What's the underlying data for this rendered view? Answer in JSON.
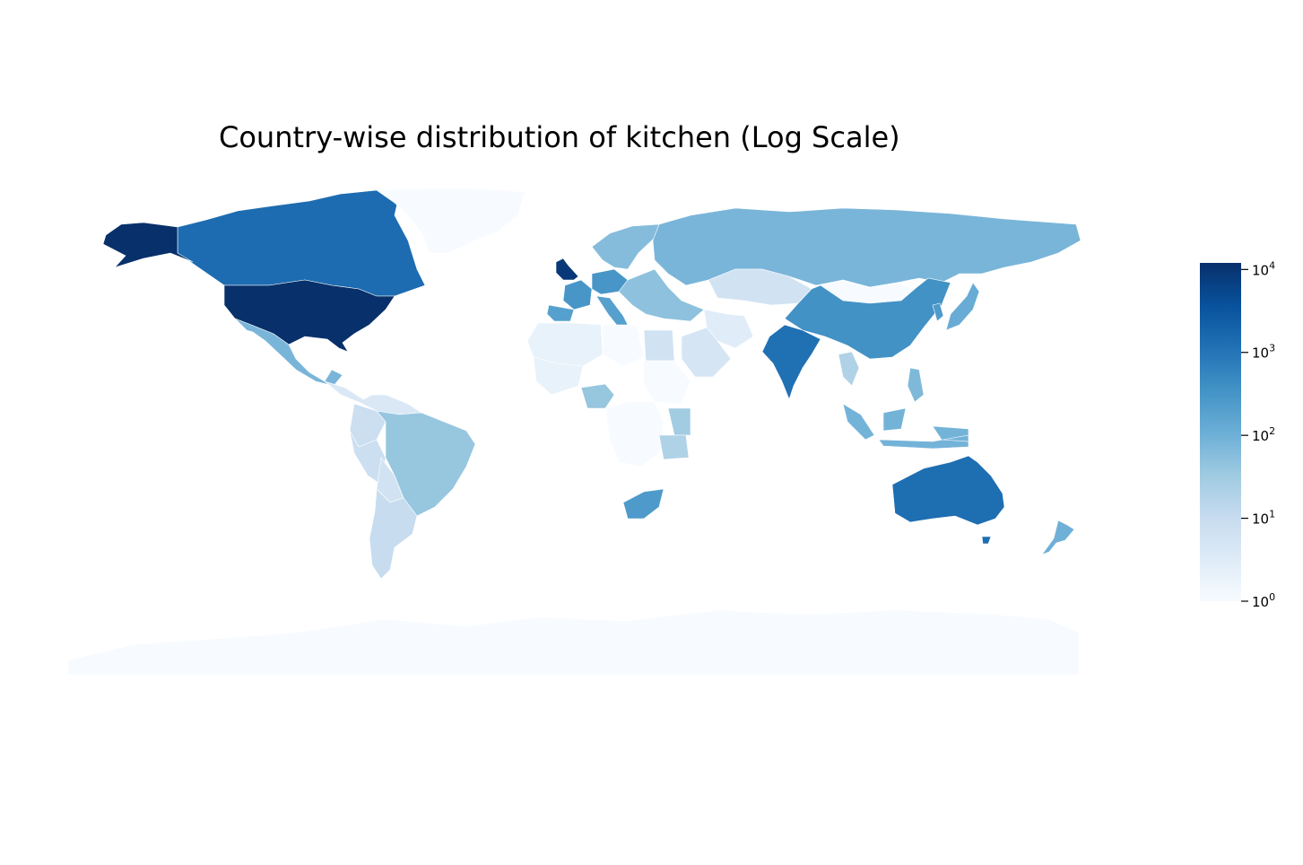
{
  "title": "Country-wise distribution of kitchen (Log Scale)",
  "colormap": {
    "name": "Blues",
    "stops": [
      "#f7fbff",
      "#deebf7",
      "#c6dbef",
      "#9ecae1",
      "#6baed6",
      "#4292c6",
      "#2171b5",
      "#08519c",
      "#08306b"
    ]
  },
  "colorbar": {
    "scale": "log",
    "range": [
      1,
      12000
    ],
    "ticks": [
      {
        "base": "10",
        "exp": "4",
        "value": 10000
      },
      {
        "base": "10",
        "exp": "3",
        "value": 1000
      },
      {
        "base": "10",
        "exp": "2",
        "value": 100
      },
      {
        "base": "10",
        "exp": "1",
        "value": 10
      },
      {
        "base": "10",
        "exp": "0",
        "value": 1
      }
    ]
  },
  "countries": [
    {
      "name": "United States",
      "value": 12000
    },
    {
      "name": "Alaska",
      "value": 12000
    },
    {
      "name": "United Kingdom",
      "value": 9000
    },
    {
      "name": "Canada",
      "value": 1400
    },
    {
      "name": "Australia",
      "value": 1300
    },
    {
      "name": "India",
      "value": 1200
    },
    {
      "name": "China",
      "value": 350
    },
    {
      "name": "France",
      "value": 300
    },
    {
      "name": "Germany",
      "value": 300
    },
    {
      "name": "South Africa",
      "value": 250
    },
    {
      "name": "Spain",
      "value": 200
    },
    {
      "name": "Italy",
      "value": 200
    },
    {
      "name": "Korea",
      "value": 250
    },
    {
      "name": "Japan",
      "value": 120
    },
    {
      "name": "Mexico",
      "value": 80
    },
    {
      "name": "Russia",
      "value": 80
    },
    {
      "name": "Indonesia",
      "value": 90
    },
    {
      "name": "New Zealand",
      "value": 100
    },
    {
      "name": "Sweden",
      "value": 60
    },
    {
      "name": "Norway",
      "value": 50
    },
    {
      "name": "Philippines",
      "value": 70
    },
    {
      "name": "Turkey",
      "value": 50
    },
    {
      "name": "Brazil",
      "value": 40
    },
    {
      "name": "Nigeria",
      "value": 40
    },
    {
      "name": "Kenya",
      "value": 30
    },
    {
      "name": "Tanzania",
      "value": 20
    },
    {
      "name": "Thailand",
      "value": 20
    },
    {
      "name": "Argentina",
      "value": 10
    },
    {
      "name": "Peru",
      "value": 8
    },
    {
      "name": "Colombia",
      "value": 8
    },
    {
      "name": "Kazakhstan",
      "value": 6
    },
    {
      "name": "Egypt",
      "value": 6
    },
    {
      "name": "Saudi Arabia",
      "value": 5
    },
    {
      "name": "Iran",
      "value": 3
    },
    {
      "name": "Algeria",
      "value": 2
    },
    {
      "name": "Mongolia",
      "value": 1
    },
    {
      "name": "Greenland",
      "value": 1
    },
    {
      "name": "Antarctica",
      "value": 1
    },
    {
      "name": "Congo",
      "value": 1
    },
    {
      "name": "Sudan",
      "value": 1
    },
    {
      "name": "Libya",
      "value": 1
    },
    {
      "name": "Mali",
      "value": 2
    },
    {
      "name": "Venezuela",
      "value": 4
    },
    {
      "name": "Bolivia",
      "value": 6
    }
  ]
}
